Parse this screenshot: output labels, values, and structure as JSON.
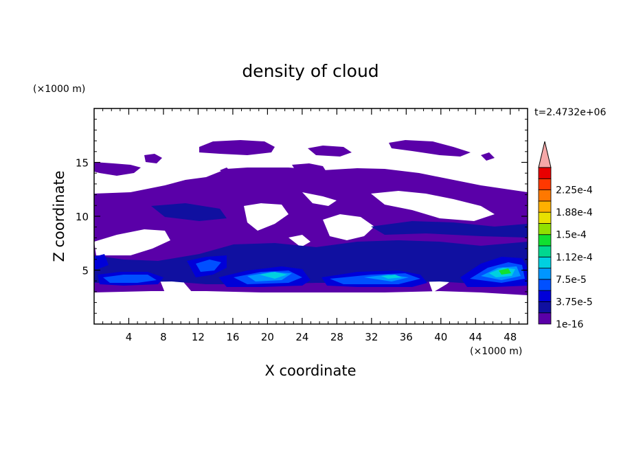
{
  "chart_data": {
    "type": "heatmap",
    "title": "density of cloud",
    "xlabel": "X coordinate",
    "ylabel": "Z coordinate",
    "x_unit": "(×1000 m)",
    "y_unit": "(×1000 m)",
    "time_label": "t=2.4732e+06",
    "xlim": [
      0,
      50
    ],
    "ylim": [
      0,
      20
    ],
    "x_ticks": [
      4,
      8,
      12,
      16,
      20,
      24,
      28,
      32,
      36,
      40,
      44,
      48
    ],
    "y_ticks": [
      5,
      10,
      15
    ],
    "colorbar": {
      "labels": [
        "1e-16",
        "3.75e-5",
        "7.5e-5",
        "1.12e-4",
        "1.5e-4",
        "1.88e-4",
        "2.25e-4"
      ],
      "colors": [
        "#5a00a8",
        "#1010a0",
        "#0000d8",
        "#0050ff",
        "#0096ff",
        "#00d0e0",
        "#00d890",
        "#10e030",
        "#90e000",
        "#e8e000",
        "#ffb000",
        "#ff7800",
        "#ff3800",
        "#e80000",
        "#f5a8a8"
      ],
      "extend_max": true
    },
    "features": [
      {
        "name": "upper-cloud-layer",
        "x_range": [
          0,
          50
        ],
        "z_range": [
          8,
          17
        ],
        "level": "1e-16"
      },
      {
        "name": "cloud-core-1",
        "x_center": 5.5,
        "z_center": 4.5,
        "max_level": "3.75e-5"
      },
      {
        "name": "cloud-core-2",
        "x_center": 20,
        "z_center": 4.6,
        "max_level": "1.12e-4"
      },
      {
        "name": "cloud-core-3",
        "x_center": 35,
        "z_center": 4.5,
        "max_level": "1.12e-4"
      },
      {
        "name": "cloud-core-4",
        "x_center": 46.5,
        "z_center": 5,
        "max_level": "1.5e-4"
      }
    ]
  }
}
